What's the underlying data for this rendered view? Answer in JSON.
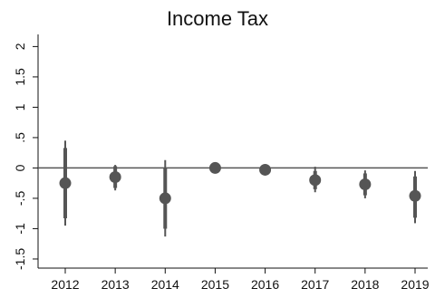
{
  "chart_data": {
    "type": "scatter",
    "title": "Income Tax",
    "xlabel": "",
    "ylabel": "",
    "categories": [
      "2012",
      "2013",
      "2014",
      "2015",
      "2016",
      "2017",
      "2018",
      "2019"
    ],
    "series": [
      {
        "values": [
          -0.25,
          -0.15,
          -0.5,
          0.0,
          -0.03,
          -0.2,
          -0.27,
          -0.46
        ],
        "ci_outer_low": [
          -0.95,
          -0.37,
          -1.13,
          -0.03,
          -0.08,
          -0.4,
          -0.5,
          -0.91
        ],
        "ci_outer_high": [
          0.45,
          0.05,
          0.13,
          0.03,
          0.02,
          0.02,
          -0.04,
          -0.05
        ],
        "ci_inner_low": [
          -0.83,
          -0.33,
          -1.0,
          -0.02,
          -0.07,
          -0.35,
          -0.45,
          -0.82
        ],
        "ci_inner_high": [
          0.33,
          0.03,
          0.0,
          0.02,
          0.01,
          -0.05,
          -0.09,
          -0.14
        ]
      }
    ],
    "y_ticks": [
      "-1.5",
      "-1",
      "-.5",
      "0",
      ".5",
      "1",
      "1.5",
      "2"
    ],
    "y_tick_values": [
      -1.5,
      -1,
      -0.5,
      0,
      0.5,
      1,
      1.5,
      2
    ],
    "ylim": [
      -1.65,
      2.2
    ],
    "reference_line_y": 0,
    "grid": false,
    "legend": "none",
    "colors": {
      "marker": "#555555",
      "reference_line": "#555555",
      "axis": "#111111"
    }
  }
}
